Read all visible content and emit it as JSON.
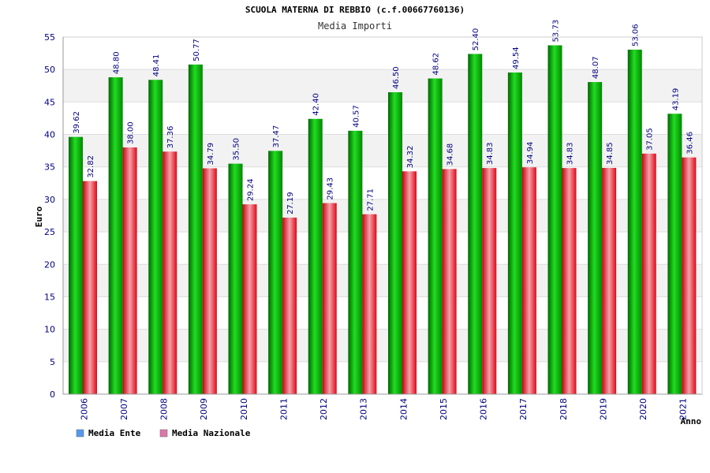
{
  "chart_data": {
    "type": "bar",
    "title": "SCUOLA MATERNA DI REBBIO (c.f.00667760136)",
    "subtitle": "Media Importi",
    "xlabel": "Anno",
    "ylabel": "Euro",
    "ylim": [
      0,
      55
    ],
    "ytick_step": 5,
    "grid": true,
    "legend_position": "bottom-left",
    "categories": [
      "2006",
      "2007",
      "2008",
      "2009",
      "2010",
      "2011",
      "2012",
      "2013",
      "2014",
      "2015",
      "2016",
      "2017",
      "2018",
      "2019",
      "2020",
      "2021"
    ],
    "series": [
      {
        "name": "Media Ente",
        "color": "#00b800",
        "legend_color": "#5599ee",
        "values": [
          39.62,
          48.8,
          48.41,
          50.77,
          35.5,
          37.47,
          42.4,
          40.57,
          46.5,
          48.62,
          52.4,
          49.54,
          53.73,
          48.07,
          53.06,
          43.19
        ],
        "labels": [
          "39.62",
          "48.80",
          "48.41",
          "50.77",
          "35.50",
          "37.47",
          "42.40",
          "40.57",
          "46.50",
          "48.62",
          "52.40",
          "49.54",
          "53.73",
          "48.07",
          "53.06",
          "43.19"
        ]
      },
      {
        "name": "Media Nazionale",
        "color": "#ee1c24",
        "legend_color": "#dd77aa",
        "values": [
          32.82,
          38.0,
          37.36,
          34.79,
          29.24,
          27.19,
          29.43,
          27.71,
          34.32,
          34.68,
          34.83,
          34.94,
          34.83,
          34.85,
          37.05,
          36.46
        ],
        "labels": [
          "32.82",
          "38.00",
          "37.36",
          "34.79",
          "29.24",
          "27.19",
          "29.43",
          "27.71",
          "34.32",
          "34.68",
          "34.83",
          "34.94",
          "34.83",
          "34.85",
          "37.05",
          "36.46"
        ]
      }
    ]
  }
}
